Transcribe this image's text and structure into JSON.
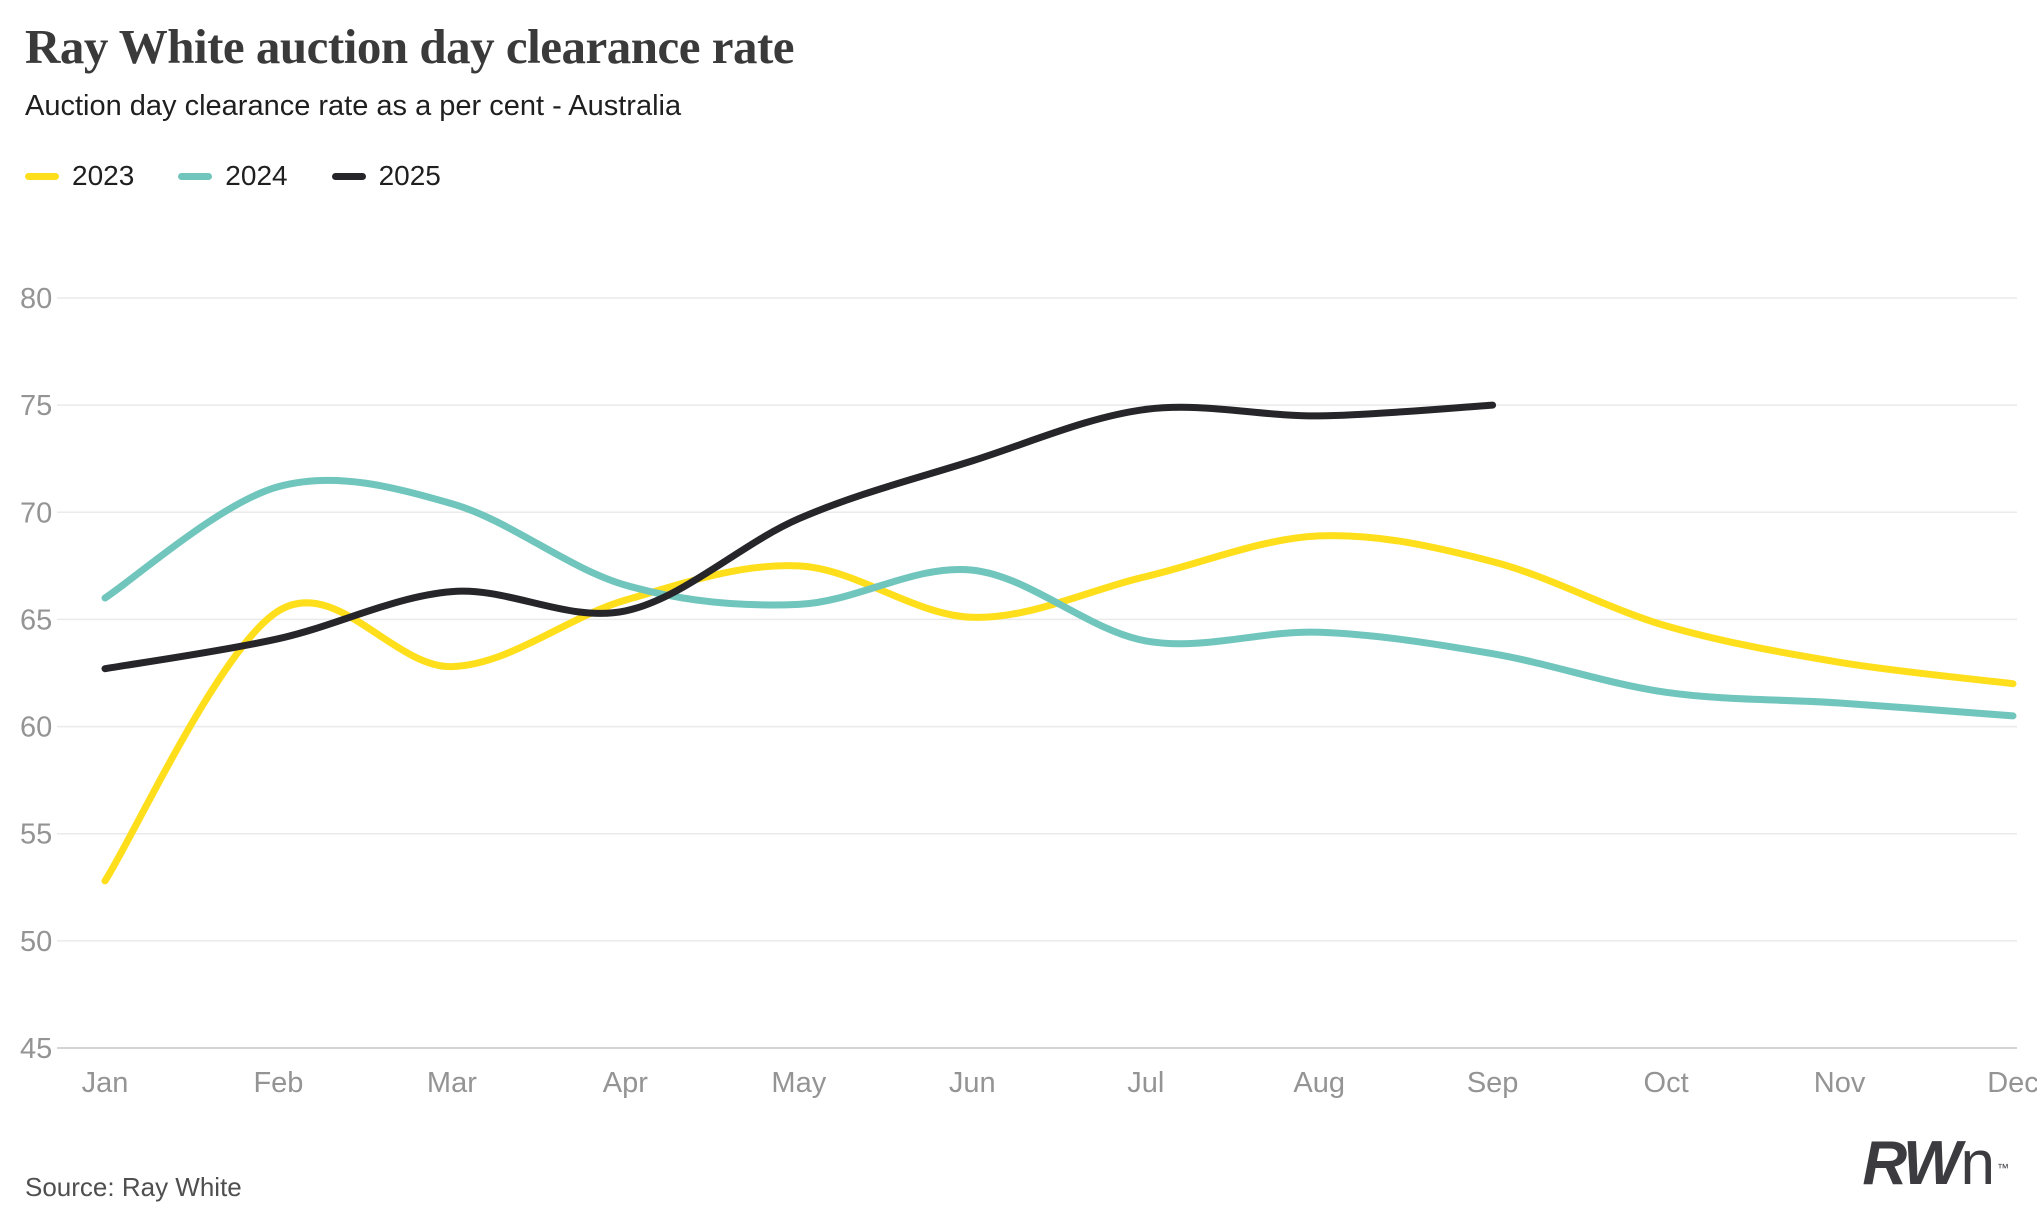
{
  "chart_data": {
    "type": "line",
    "title": "Ray White auction day clearance rate",
    "subtitle": "Auction day clearance rate as a per cent - Australia",
    "xlabel": "",
    "ylabel": "Auction day clearance rate (per cent)",
    "x": [
      "Jan",
      "Feb",
      "Mar",
      "Apr",
      "May",
      "Jun",
      "Jul",
      "Aug",
      "Sep",
      "Oct",
      "Nov",
      "Dec"
    ],
    "ylim": [
      45,
      80
    ],
    "yticks": [
      45,
      50,
      55,
      60,
      65,
      70,
      75,
      80
    ],
    "grid": true,
    "legend_position": "top-left",
    "series": [
      {
        "name": "2023",
        "color": "#FFDF1B",
        "values": [
          52.8,
          65.4,
          62.8,
          65.9,
          67.5,
          65.1,
          67.0,
          68.9,
          67.7,
          64.7,
          63.0,
          62.0
        ]
      },
      {
        "name": "2024",
        "color": "#70C6BD",
        "values": [
          66.0,
          71.2,
          70.4,
          66.6,
          65.7,
          67.3,
          64.0,
          64.4,
          63.4,
          61.6,
          61.1,
          60.5
        ]
      },
      {
        "name": "2025",
        "color": "#26262A",
        "values": [
          62.7,
          64.1,
          66.3,
          65.4,
          69.7,
          72.4,
          74.8,
          74.5,
          75.0
        ]
      }
    ]
  },
  "footer": {
    "source": "Source: Ray White",
    "logo_rw": "RW",
    "logo_n": "n",
    "logo_tm": "™"
  },
  "colors": {
    "grid": "#EAEAEA",
    "axis_line": "#D4D4D4",
    "tick_text": "#949494"
  }
}
